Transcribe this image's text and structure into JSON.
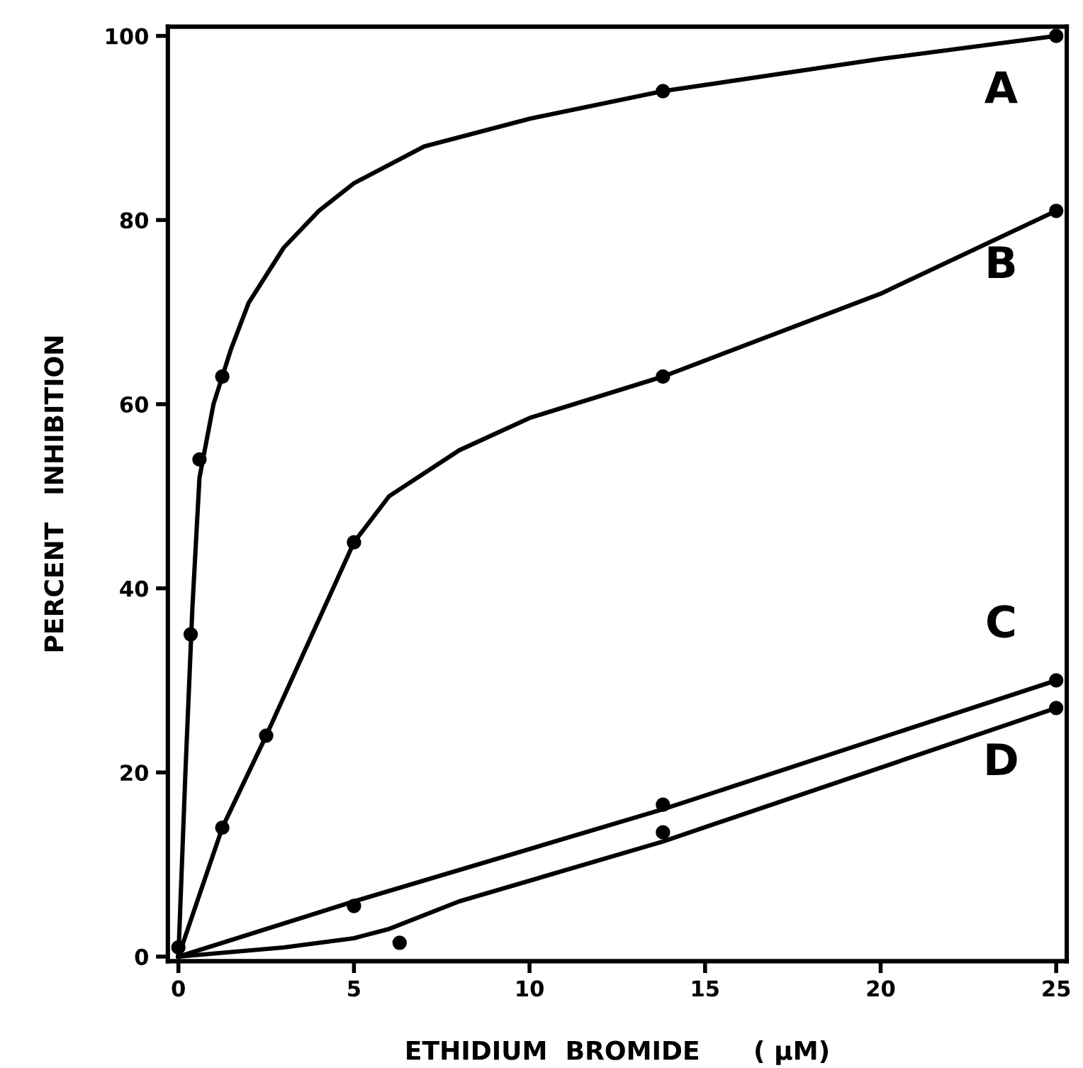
{
  "chart_data": {
    "type": "line",
    "xlabel": "ETHIDIUM  BROMIDE      ( μM)",
    "ylabel": "PERCENT   INHIBITION",
    "xlim": [
      -0.3,
      25.3
    ],
    "ylim": [
      -0.5,
      101
    ],
    "xticks": [
      0,
      5,
      10,
      15,
      20,
      25
    ],
    "yticks": [
      0,
      20,
      40,
      60,
      80,
      100
    ],
    "grid": false,
    "legend": false,
    "series": [
      {
        "name": "A",
        "color": "#000000",
        "x": [
          0,
          0.2,
          0.4,
          0.6,
          1,
          1.5,
          2,
          3,
          4,
          5,
          7,
          10,
          13.8,
          20,
          25
        ],
        "values": [
          0,
          20,
          38,
          52,
          60,
          66,
          71,
          77,
          81,
          84,
          88,
          91,
          94,
          97.5,
          100
        ]
      },
      {
        "name": "B",
        "color": "#000000",
        "x": [
          0,
          1.25,
          2.5,
          5,
          6,
          8,
          10,
          13.8,
          20,
          25
        ],
        "values": [
          0,
          14,
          24,
          45,
          50,
          55,
          58.5,
          63,
          72,
          81
        ]
      },
      {
        "name": "C",
        "color": "#000000",
        "x": [
          0,
          5,
          13.8,
          25
        ],
        "values": [
          0,
          6,
          16,
          30
        ]
      },
      {
        "name": "D",
        "color": "#000000",
        "x": [
          0,
          3,
          5,
          6,
          8,
          13.8,
          25
        ],
        "values": [
          0,
          1,
          2,
          3,
          6,
          12.5,
          27
        ]
      },
      {
        "type": "scatter",
        "color": "#000000",
        "x": [
          0,
          0.35,
          0.6,
          1.25,
          13.8,
          25
        ],
        "values": [
          1,
          35,
          54,
          63,
          94,
          100
        ]
      },
      {
        "type": "scatter",
        "color": "#000000",
        "x": [
          1.25,
          2.5,
          5,
          13.8,
          25
        ],
        "values": [
          14,
          24,
          45,
          63,
          81
        ]
      },
      {
        "type": "scatter",
        "color": "#000000",
        "x": [
          5,
          13.8,
          25
        ],
        "values": [
          5.5,
          16.5,
          30
        ]
      },
      {
        "type": "scatter",
        "color": "#000000",
        "x": [
          6.3,
          13.8,
          25
        ],
        "values": [
          1.5,
          13.5,
          27
        ]
      }
    ]
  }
}
